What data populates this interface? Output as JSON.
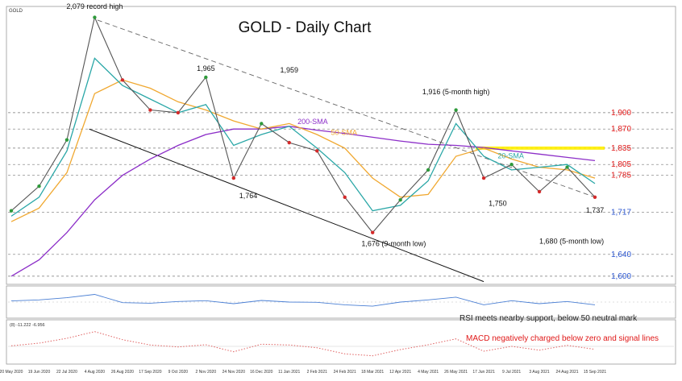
{
  "symbol": "GOLD",
  "title": "GOLD - Daily Chart",
  "colors": {
    "price_up": "#2e9a3a",
    "price_down": "#d42a2a",
    "sma20": "#2aa7a7",
    "sma50": "#f0a830",
    "sma200": "#8c2ec8",
    "resistance_red": "#e01818",
    "support_blue": "#2a55d0",
    "highlight": "#ffee00",
    "rsi": "#4a7fd4",
    "macd_dots": "#e06060",
    "trendline": "#111111"
  },
  "chart_data": {
    "type": "line",
    "title": "GOLD - Daily Chart",
    "xlabel": "",
    "ylabel": "",
    "ylim": [
      1585,
      2095
    ],
    "grid": false,
    "x": [
      "20 May 2020",
      "19 Jun 2020",
      "22 Jul 2020",
      "4 Aug 2020",
      "26 Aug 2020",
      "17 Sep 2020",
      "9 Oct 2020",
      "2 Nov 2020",
      "24 Nov 2020",
      "16 Dec 2020",
      "11 Jan 2021",
      "2 Feb 2021",
      "24 Feb 2021",
      "18 Mar 2021",
      "12 Apr 2021",
      "4 May 2021",
      "26 May 2021",
      "17 Jun 2021",
      "9 Jul 2021",
      "3 Aug 2021",
      "24 Aug 2021",
      "15 Sep 2021"
    ],
    "series": [
      {
        "name": "",
        "values": [
          1720,
          1765,
          1850,
          2075,
          1960,
          1905,
          1900,
          1965,
          1780,
          1880,
          1845,
          1830,
          1745,
          1680,
          1740,
          1795,
          1905,
          1780,
          1805,
          1755,
          1800,
          1745
        ]
      },
      {
        "name": "20-SMA",
        "values": [
          1710,
          1745,
          1830,
          2000,
          1950,
          1925,
          1900,
          1915,
          1840,
          1860,
          1875,
          1835,
          1790,
          1720,
          1730,
          1775,
          1880,
          1820,
          1795,
          1800,
          1805,
          1770
        ]
      },
      {
        "name": "50-SMA",
        "values": [
          1700,
          1725,
          1790,
          1935,
          1960,
          1945,
          1920,
          1905,
          1885,
          1870,
          1880,
          1860,
          1835,
          1780,
          1745,
          1750,
          1820,
          1835,
          1815,
          1800,
          1795,
          1780
        ]
      },
      {
        "name": "200-SMA",
        "values": [
          1600,
          1630,
          1680,
          1740,
          1785,
          1815,
          1840,
          1860,
          1870,
          1870,
          1875,
          1868,
          1862,
          1855,
          1848,
          1842,
          1840,
          1836,
          1830,
          1824,
          1818,
          1812
        ]
      }
    ],
    "levels": {
      "resistance": [
        "1,900",
        "1,870",
        "1,835",
        "1,805",
        "1,785"
      ],
      "support": [
        "1,717",
        "1,640",
        "1,600"
      ]
    },
    "annotations": [
      "2,079 record high",
      "1,965",
      "1,959",
      "1,916 (5-month high)",
      "1,764",
      "1,750",
      "1,676 (9-month low)",
      "1,680 (5-month low)",
      "1,737"
    ],
    "series_labels": [
      "20-SMA",
      "50-SMA",
      "200-SMA"
    ]
  },
  "rsi": {
    "note": "RSI meets nearby support, below 50 neutral mark",
    "values": [
      54,
      58,
      66,
      78,
      48,
      46,
      52,
      55,
      44,
      56,
      50,
      49,
      40,
      35,
      50,
      58,
      68,
      40,
      55,
      44,
      52,
      40
    ]
  },
  "macd": {
    "header": "(8) -11.222 -6.956",
    "note": "MACD negatively charged below zero and signal lines",
    "values": [
      2,
      12,
      30,
      55,
      25,
      5,
      -2,
      6,
      -20,
      8,
      5,
      -5,
      -28,
      -35,
      -12,
      6,
      28,
      -18,
      0,
      -14,
      4,
      -11
    ]
  }
}
